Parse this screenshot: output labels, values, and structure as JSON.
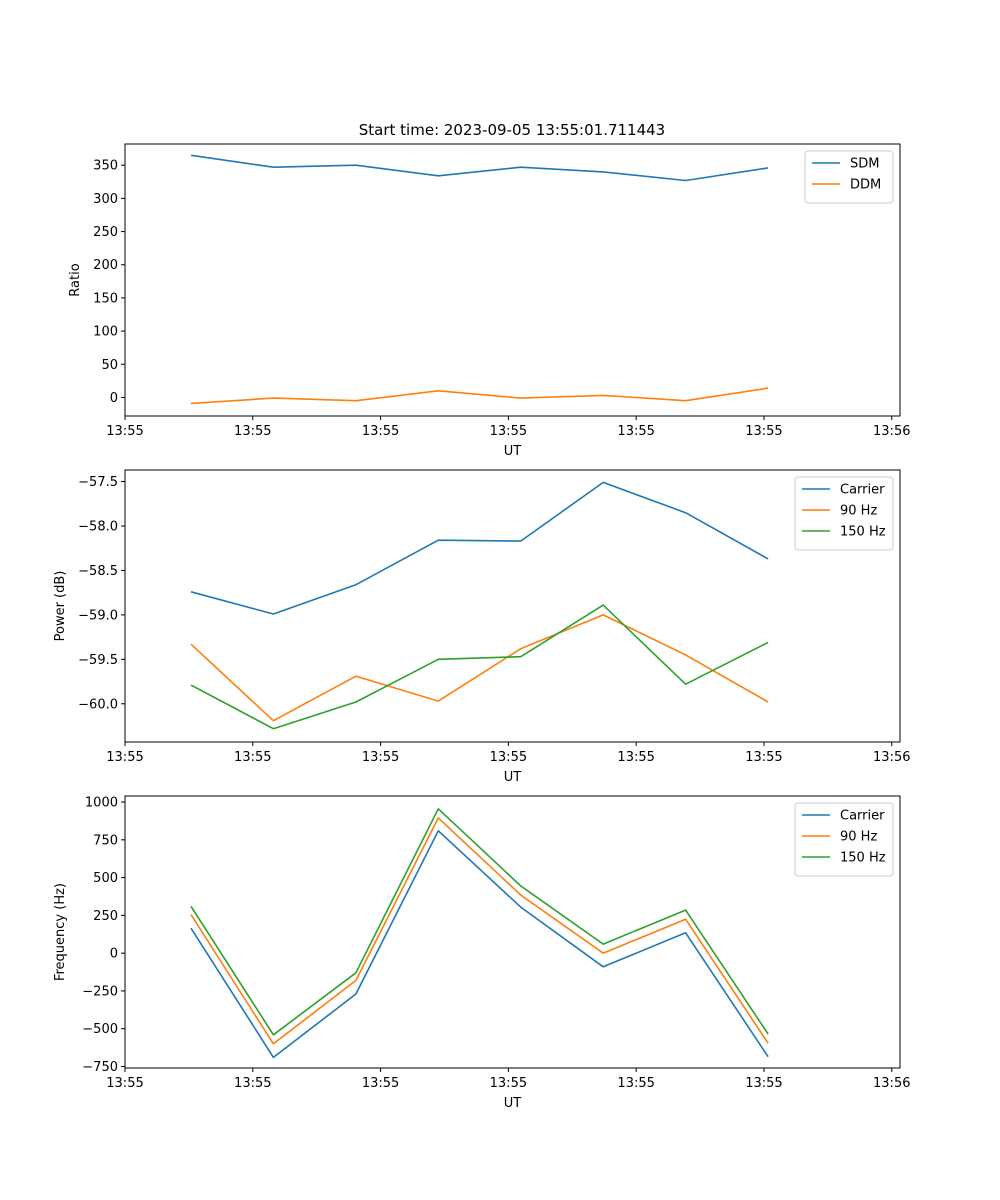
{
  "figure": {
    "title": "Start time: 2023-09-05 13:55:01.711443"
  },
  "colors": {
    "blue": "#1f77b4",
    "orange": "#ff7f0e",
    "green": "#2ca02c"
  },
  "chart_data": [
    {
      "type": "line",
      "title": "Start time: 2023-09-05 13:55:01.711443",
      "xlabel": "UT",
      "ylabel": "Ratio",
      "x": [
        1,
        2,
        3,
        4,
        5,
        6,
        7,
        8
      ],
      "xlim": [
        0.2,
        9.6
      ],
      "x_ticks": [
        0.2,
        1.75,
        3.3,
        4.85,
        6.4,
        7.95,
        9.5
      ],
      "x_tick_labels": [
        "13:55",
        "13:55",
        "13:55",
        "13:55",
        "13:55",
        "13:55",
        "13:56"
      ],
      "ylim": [
        -28,
        382
      ],
      "y_ticks": [
        0,
        50,
        100,
        150,
        200,
        250,
        300,
        350
      ],
      "legend_position": "top-right",
      "series": [
        {
          "name": "SDM",
          "color": "#1f77b4",
          "values": [
            365,
            347,
            350,
            334,
            347,
            340,
            327,
            346
          ]
        },
        {
          "name": "DDM",
          "color": "#ff7f0e",
          "values": [
            -9,
            -1,
            -5,
            10,
            -1,
            3,
            -5,
            14
          ]
        }
      ]
    },
    {
      "type": "line",
      "title": "",
      "xlabel": "UT",
      "ylabel": "Power (dB)",
      "x": [
        1,
        2,
        3,
        4,
        5,
        6,
        7,
        8
      ],
      "xlim": [
        0.2,
        9.6
      ],
      "x_ticks": [
        0.2,
        1.75,
        3.3,
        4.85,
        6.4,
        7.95,
        9.5
      ],
      "x_tick_labels": [
        "13:55",
        "13:55",
        "13:55",
        "13:55",
        "13:55",
        "13:55",
        "13:56"
      ],
      "ylim": [
        -60.43,
        -57.37
      ],
      "y_ticks": [
        -60.0,
        -59.5,
        -59.0,
        -58.5,
        -58.0,
        -57.5
      ],
      "y_tick_labels": [
        "−60.0",
        "−59.5",
        "−59.0",
        "−58.5",
        "−58.0",
        "−57.5"
      ],
      "legend_position": "top-right",
      "series": [
        {
          "name": "Carrier",
          "color": "#1f77b4",
          "values": [
            -58.74,
            -58.99,
            -58.66,
            -58.16,
            -58.17,
            -57.51,
            -57.85,
            -58.37
          ]
        },
        {
          "name": "90 Hz",
          "color": "#ff7f0e",
          "values": [
            -59.33,
            -60.19,
            -59.69,
            -59.97,
            -59.38,
            -59.0,
            -59.45,
            -59.98
          ]
        },
        {
          "name": "150 Hz",
          "color": "#2ca02c",
          "values": [
            -59.79,
            -60.28,
            -59.98,
            -59.5,
            -59.47,
            -58.89,
            -59.78,
            -59.31
          ]
        }
      ]
    },
    {
      "type": "line",
      "title": "",
      "xlabel": "UT",
      "ylabel": "Frequency (Hz)",
      "x": [
        1,
        2,
        3,
        4,
        5,
        6,
        7,
        8
      ],
      "xlim": [
        0.2,
        9.6
      ],
      "x_ticks": [
        0.2,
        1.75,
        3.3,
        4.85,
        6.4,
        7.95,
        9.5
      ],
      "x_tick_labels": [
        "13:55",
        "13:55",
        "13:55",
        "13:55",
        "13:55",
        "13:55",
        "13:56"
      ],
      "ylim": [
        -760,
        1040
      ],
      "y_ticks": [
        -750,
        -500,
        -250,
        0,
        250,
        500,
        750,
        1000
      ],
      "y_tick_labels": [
        "−750",
        "−500",
        "−250",
        "0",
        "250",
        "500",
        "750",
        "1000"
      ],
      "legend_position": "top-right",
      "series": [
        {
          "name": "Carrier",
          "color": "#1f77b4",
          "values": [
            165,
            -690,
            -270,
            810,
            305,
            -90,
            135,
            -685
          ]
        },
        {
          "name": "90 Hz",
          "color": "#ff7f0e",
          "values": [
            255,
            -600,
            -180,
            895,
            385,
            0,
            225,
            -595
          ]
        },
        {
          "name": "150 Hz",
          "color": "#2ca02c",
          "values": [
            310,
            -540,
            -130,
            955,
            445,
            60,
            285,
            -535
          ]
        }
      ]
    }
  ]
}
